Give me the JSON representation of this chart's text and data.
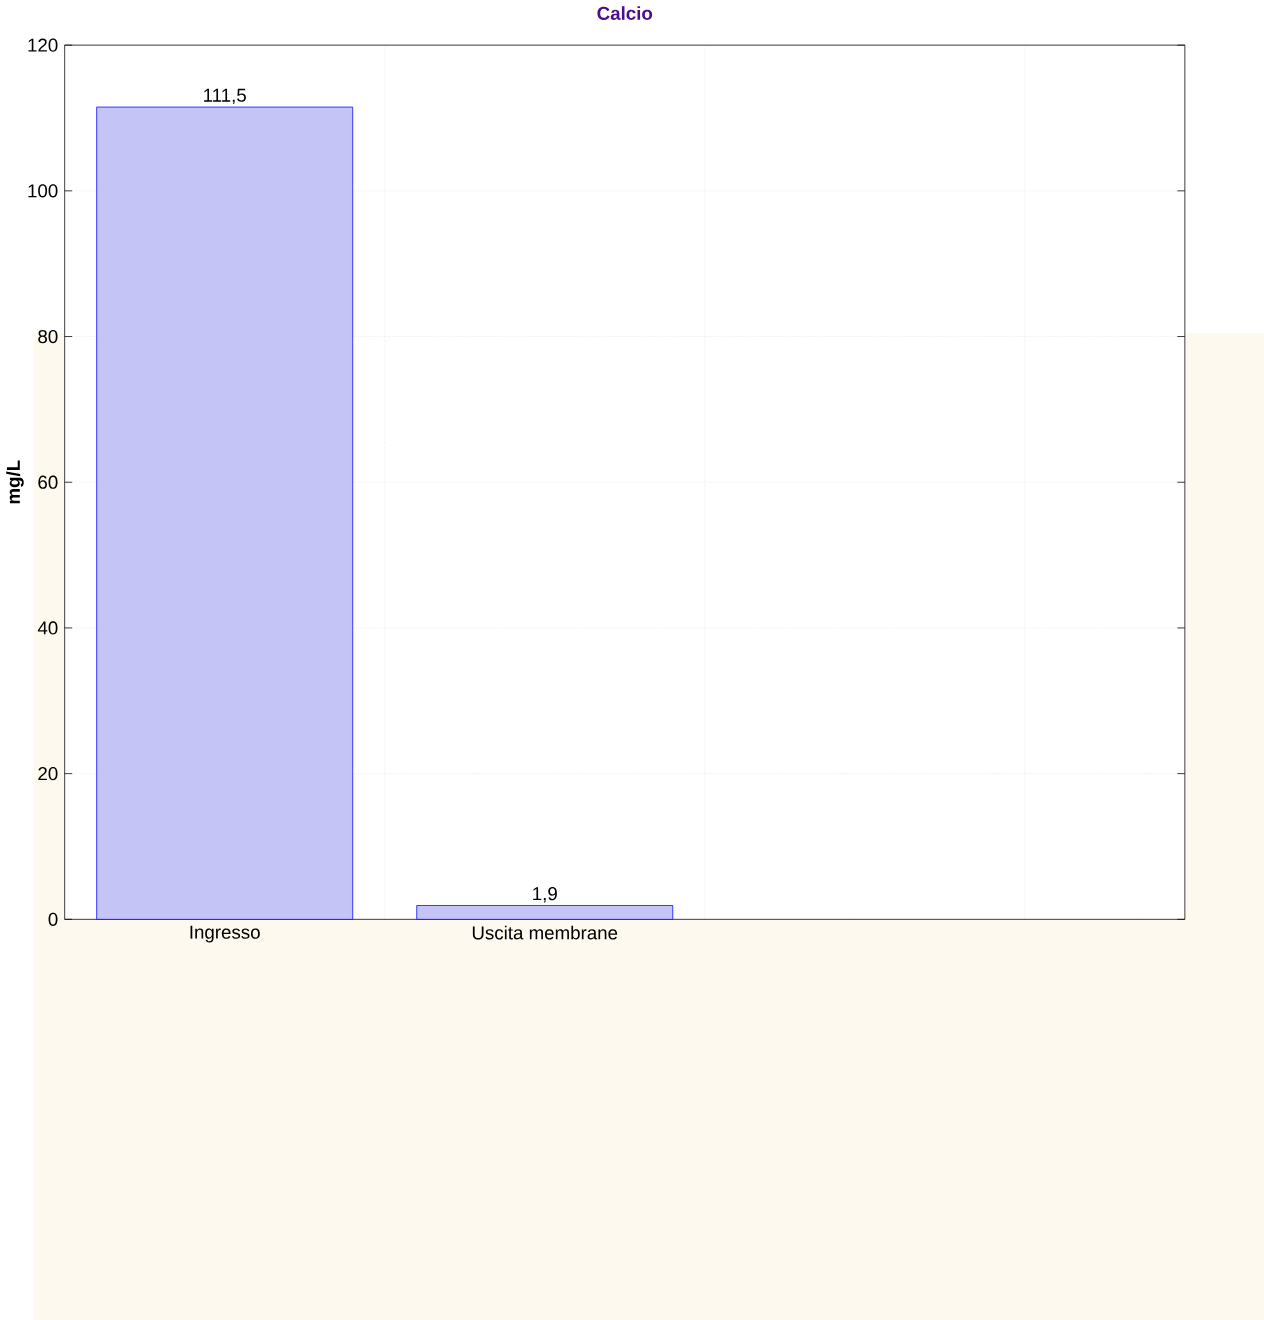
{
  "chart_data": {
    "type": "bar",
    "title": "Calcio",
    "ylabel": "mg/L",
    "categories": [
      "Ingresso",
      "Uscita membrane",
      null,
      null
    ],
    "values": [
      111.5,
      1.9,
      null,
      null
    ],
    "value_labels": [
      "111,5",
      "1,9",
      null,
      null
    ],
    "color": "#c4c4f6",
    "ylim": [
      0,
      120
    ],
    "yticks": [
      0,
      20,
      40,
      60,
      80,
      100,
      120
    ],
    "grid": true
  }
}
